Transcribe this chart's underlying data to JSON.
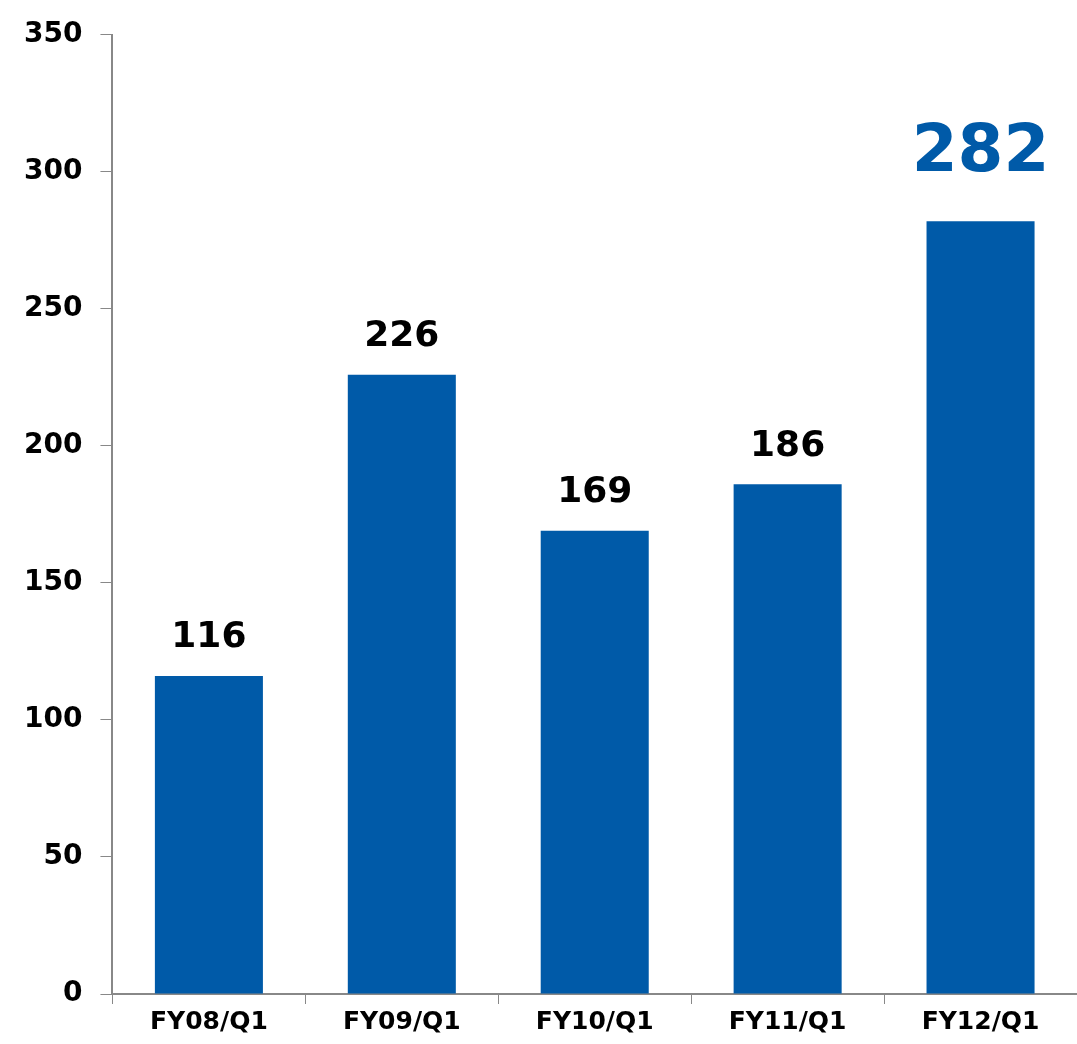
{
  "chart_data": {
    "type": "bar",
    "categories": [
      "FY08/Q1",
      "FY09/Q1",
      "FY10/Q1",
      "FY11/Q1",
      "FY12/Q1"
    ],
    "values": [
      116,
      226,
      169,
      186,
      282
    ],
    "color": "#005aa8",
    "ylim": [
      0,
      350
    ],
    "yticks": [
      0,
      50,
      100,
      150,
      200,
      250,
      300,
      350
    ],
    "data_labels": true,
    "grid": false,
    "legend": false
  }
}
